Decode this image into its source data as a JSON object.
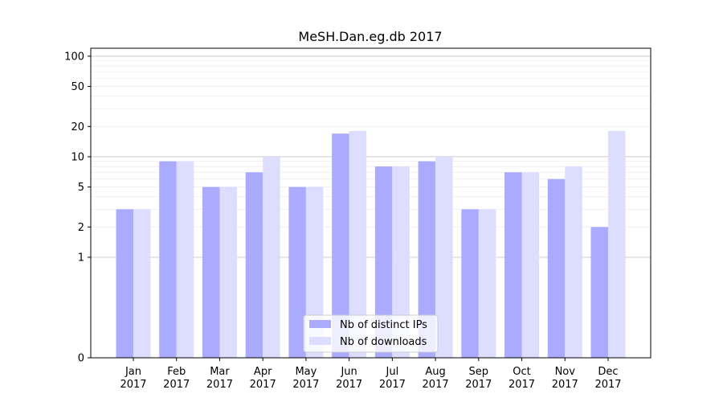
{
  "chart_data": {
    "type": "bar",
    "title": "MeSH.Dan.eg.db 2017",
    "xlabel": "",
    "ylabel": "",
    "y_scale": "symlog",
    "ylim": [
      0,
      120
    ],
    "y_ticks": [
      0,
      1,
      2,
      5,
      10,
      20,
      50,
      100
    ],
    "categories": [
      [
        "Jan",
        "2017"
      ],
      [
        "Feb",
        "2017"
      ],
      [
        "Mar",
        "2017"
      ],
      [
        "Apr",
        "2017"
      ],
      [
        "May",
        "2017"
      ],
      [
        "Jun",
        "2017"
      ],
      [
        "Jul",
        "2017"
      ],
      [
        "Aug",
        "2017"
      ],
      [
        "Sep",
        "2017"
      ],
      [
        "Oct",
        "2017"
      ],
      [
        "Nov",
        "2017"
      ],
      [
        "Dec",
        "2017"
      ]
    ],
    "series": [
      {
        "name": "Nb of distinct IPs",
        "color": "#aaaaff",
        "values": [
          3,
          9,
          5,
          7,
          5,
          17,
          8,
          9,
          3,
          7,
          6,
          2
        ]
      },
      {
        "name": "Nb of downloads",
        "color": "#ddddff",
        "values": [
          3,
          9,
          5,
          10,
          5,
          18,
          8,
          10,
          3,
          7,
          8,
          18
        ]
      }
    ],
    "legend_position": "bottom-center",
    "grid": true
  }
}
